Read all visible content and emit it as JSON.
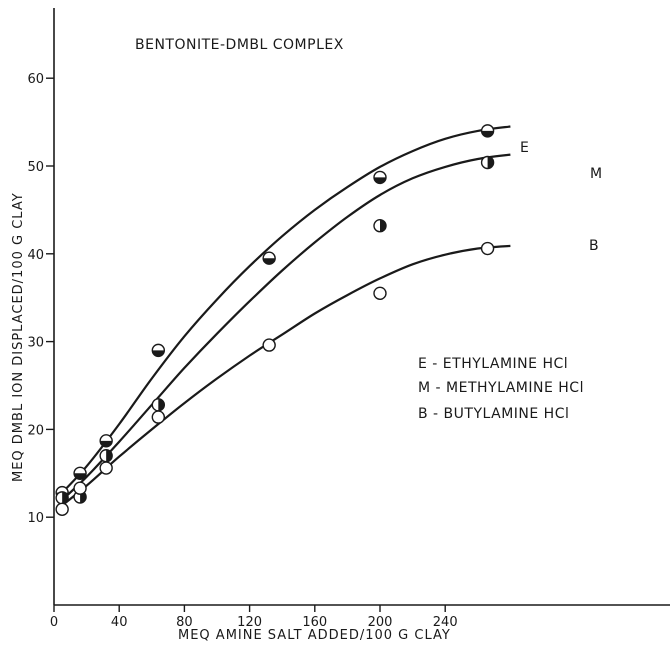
{
  "chart_data": {
    "type": "scatter",
    "title": "BENTONITE-DMBL COMPLEX",
    "xlabel": "MEQ AMINE SALT ADDED/100 G CLAY",
    "ylabel": "MEQ DMBL ION DISPLACED/100 G CLAY",
    "xlim": [
      0,
      280
    ],
    "ylim": [
      0,
      65
    ],
    "x_ticks": [
      0,
      40,
      80,
      120,
      160,
      200,
      240
    ],
    "x_tick_labels": [
      "0",
      "40",
      "80",
      "120",
      "160",
      "200",
      "240"
    ],
    "y_ticks": [
      10,
      20,
      30,
      40,
      50,
      60
    ],
    "y_tick_labels": [
      "10",
      "20",
      "30",
      "40",
      "50",
      "60"
    ],
    "grid": false,
    "legend_position": "center-right",
    "legend": [
      "E - ETHYLAMINE HCl",
      "M - METHYLAMINE HCl",
      "B - BUTYLAMINE HCl"
    ],
    "series": [
      {
        "name": "E",
        "marker": "half-bottom",
        "points": [
          [
            5,
            12.8
          ],
          [
            16,
            15.0
          ],
          [
            32,
            18.7
          ],
          [
            64,
            29.0
          ],
          [
            132,
            39.5
          ],
          [
            200,
            48.7
          ],
          [
            266,
            54.0
          ]
        ],
        "curve": [
          [
            4,
            12.6
          ],
          [
            20,
            15.8
          ],
          [
            40,
            20.6
          ],
          [
            60,
            25.8
          ],
          [
            80,
            30.6
          ],
          [
            100,
            34.8
          ],
          [
            120,
            38.6
          ],
          [
            140,
            42.0
          ],
          [
            160,
            45.0
          ],
          [
            180,
            47.6
          ],
          [
            200,
            49.9
          ],
          [
            220,
            51.7
          ],
          [
            240,
            53.1
          ],
          [
            260,
            54.0
          ],
          [
            280,
            54.5
          ]
        ]
      },
      {
        "name": "M",
        "marker": "half-right",
        "points": [
          [
            5,
            12.2
          ],
          [
            16,
            12.3
          ],
          [
            32,
            17.0
          ],
          [
            64,
            22.8
          ],
          [
            200,
            43.2
          ],
          [
            266,
            50.4
          ]
        ],
        "curve": [
          [
            4,
            11.8
          ],
          [
            20,
            14.6
          ],
          [
            40,
            18.6
          ],
          [
            60,
            22.8
          ],
          [
            80,
            27.0
          ],
          [
            100,
            30.9
          ],
          [
            120,
            34.6
          ],
          [
            140,
            38.1
          ],
          [
            160,
            41.3
          ],
          [
            180,
            44.2
          ],
          [
            200,
            46.7
          ],
          [
            220,
            48.6
          ],
          [
            240,
            49.9
          ],
          [
            260,
            50.8
          ],
          [
            280,
            51.3
          ]
        ]
      },
      {
        "name": "B",
        "marker": "open",
        "points": [
          [
            5,
            10.9
          ],
          [
            16,
            13.3
          ],
          [
            32,
            15.6
          ],
          [
            64,
            21.4
          ],
          [
            132,
            29.6
          ],
          [
            200,
            35.5
          ],
          [
            266,
            40.6
          ]
        ],
        "curve": [
          [
            4,
            11.2
          ],
          [
            20,
            13.6
          ],
          [
            40,
            16.9
          ],
          [
            60,
            20.0
          ],
          [
            80,
            23.0
          ],
          [
            100,
            25.8
          ],
          [
            120,
            28.4
          ],
          [
            140,
            30.8
          ],
          [
            160,
            33.2
          ],
          [
            180,
            35.3
          ],
          [
            200,
            37.2
          ],
          [
            220,
            38.8
          ],
          [
            240,
            39.9
          ],
          [
            260,
            40.6
          ],
          [
            280,
            40.9
          ]
        ]
      }
    ]
  }
}
